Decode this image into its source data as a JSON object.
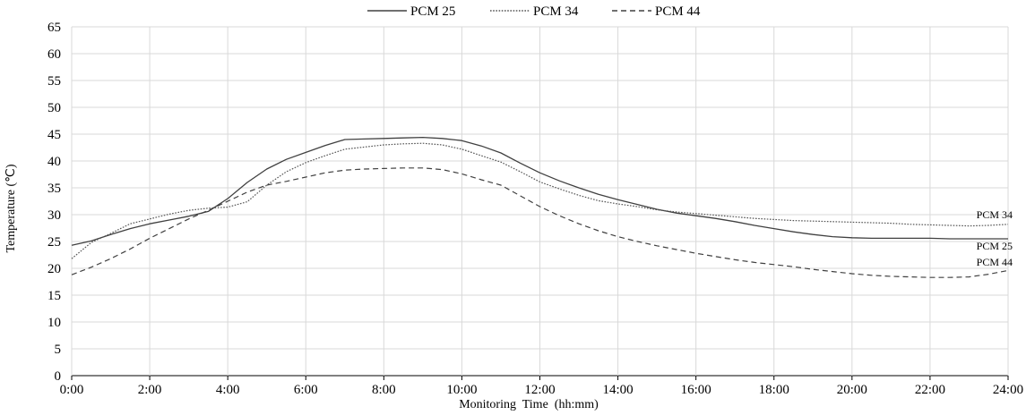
{
  "chart_data": {
    "type": "line",
    "title": "",
    "xlabel": "Monitoring  Time  (hh:mm)",
    "ylabel": "Temperature (℃)",
    "xlim": [
      0,
      24
    ],
    "ylim": [
      0,
      65
    ],
    "x_ticks": [
      "0:00",
      "2:00",
      "4:00",
      "6:00",
      "8:00",
      "10:00",
      "12:00",
      "14:00",
      "16:00",
      "18:00",
      "20:00",
      "22:00",
      "24:00"
    ],
    "y_ticks": [
      0,
      5,
      10,
      15,
      20,
      25,
      30,
      35,
      40,
      45,
      50,
      55,
      60,
      65
    ],
    "grid": true,
    "legend_position": "top-center",
    "x": [
      0,
      0.5,
      1,
      1.5,
      2,
      2.5,
      3,
      3.5,
      4,
      4.5,
      5,
      5.5,
      6,
      6.5,
      7,
      7.5,
      8,
      8.5,
      9,
      9.5,
      10,
      10.5,
      11,
      11.5,
      12,
      12.5,
      13,
      13.5,
      14,
      14.5,
      15,
      15.5,
      16,
      16.5,
      17,
      17.5,
      18,
      18.5,
      19,
      19.5,
      20,
      20.5,
      21,
      21.5,
      22,
      22.5,
      23,
      23.5,
      24
    ],
    "series": [
      {
        "name": "PCM 25",
        "style": "solid",
        "end_label": "PCM 25",
        "values": [
          24.3,
          25.1,
          26.3,
          27.4,
          28.3,
          29.0,
          29.7,
          30.6,
          33.0,
          36.0,
          38.5,
          40.3,
          41.6,
          42.9,
          44.0,
          44.1,
          44.2,
          44.3,
          44.4,
          44.2,
          43.8,
          42.8,
          41.5,
          39.6,
          37.8,
          36.3,
          35.0,
          33.8,
          32.8,
          31.9,
          31.0,
          30.3,
          29.8,
          29.3,
          28.7,
          28.0,
          27.4,
          26.8,
          26.3,
          25.9,
          25.7,
          25.6,
          25.6,
          25.6,
          25.6,
          25.5,
          25.5,
          25.5,
          25.5
        ]
      },
      {
        "name": "PCM 34",
        "style": "dotted",
        "end_label": "PCM 34",
        "values": [
          21.8,
          24.8,
          26.5,
          28.3,
          29.2,
          30.1,
          30.8,
          31.2,
          31.4,
          32.4,
          35.5,
          38.0,
          39.7,
          41.0,
          42.2,
          42.6,
          43.0,
          43.2,
          43.3,
          43.0,
          42.2,
          41.0,
          39.8,
          38.0,
          36.1,
          34.8,
          33.6,
          32.6,
          32.0,
          31.5,
          30.9,
          30.5,
          30.2,
          29.9,
          29.6,
          29.3,
          29.1,
          28.9,
          28.8,
          28.7,
          28.6,
          28.5,
          28.4,
          28.2,
          28.1,
          28.0,
          27.9,
          28.0,
          28.2
        ]
      },
      {
        "name": "PCM 44",
        "style": "dashed",
        "end_label": "PCM 44",
        "values": [
          18.8,
          20.2,
          21.8,
          23.6,
          25.6,
          27.4,
          29.2,
          30.8,
          32.5,
          34.2,
          35.5,
          36.2,
          37.0,
          37.8,
          38.3,
          38.5,
          38.6,
          38.7,
          38.7,
          38.4,
          37.6,
          36.5,
          35.5,
          33.5,
          31.5,
          29.8,
          28.3,
          27.0,
          25.9,
          25.0,
          24.2,
          23.5,
          22.8,
          22.2,
          21.6,
          21.1,
          20.7,
          20.3,
          19.8,
          19.4,
          19.0,
          18.7,
          18.5,
          18.4,
          18.3,
          18.3,
          18.4,
          18.9,
          19.6
        ]
      }
    ]
  }
}
